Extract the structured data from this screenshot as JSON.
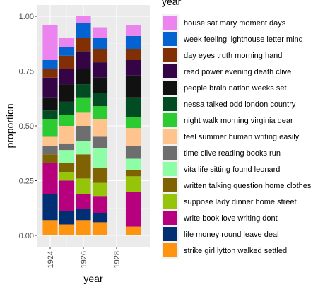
{
  "chart_data": {
    "type": "bar",
    "stacked": true,
    "normalized": true,
    "xlabel": "year",
    "ylabel": "proportion",
    "legend_title": "year",
    "legend_position": "right",
    "grid": true,
    "x_tick_values": [
      1924,
      1926,
      1928
    ],
    "x_tick_labels": [
      "1924",
      "1926",
      "1928"
    ],
    "y_tick_values": [
      0.0,
      0.25,
      0.5,
      0.75,
      1.0
    ],
    "y_tick_labels": [
      "0.00",
      "0.25",
      "0.50",
      "0.75",
      "1.00"
    ],
    "xlim": [
      1923.4,
      1929.7
    ],
    "ylim": [
      0,
      1
    ],
    "categories": [
      1924,
      1925,
      1926,
      1927,
      1929
    ],
    "series": [
      {
        "name": "strike girl lytton walked settled",
        "color": "#FF9411",
        "values": [
          0.07,
          0.05,
          0.07,
          0.06,
          0.04
        ]
      },
      {
        "name": "life money round leave deal",
        "color": "#002F73",
        "values": [
          0.12,
          0.06,
          0.05,
          0.04,
          0.0
        ]
      },
      {
        "name": "write book love writing dont",
        "color": "#B7007D",
        "values": [
          0.14,
          0.14,
          0.07,
          0.08,
          0.16
        ]
      },
      {
        "name": "suppose lady dinner home street",
        "color": "#95C409",
        "values": [
          0.0,
          0.04,
          0.07,
          0.06,
          0.07
        ]
      },
      {
        "name": "written talking question home clothes",
        "color": "#7F6302",
        "values": [
          0.04,
          0.04,
          0.11,
          0.07,
          0.03
        ]
      },
      {
        "name": "vita life sitting found leonard",
        "color": "#8EFEA6",
        "values": [
          0.0,
          0.06,
          0.06,
          0.09,
          0.05
        ]
      },
      {
        "name": "time clive reading books run",
        "color": "#6E6E6E",
        "values": [
          0.04,
          0.03,
          0.07,
          0.05,
          0.06
        ]
      },
      {
        "name": "feel summer human writing easily",
        "color": "#FFC38E",
        "values": [
          0.04,
          0.08,
          0.06,
          0.08,
          0.08
        ]
      },
      {
        "name": "night walk morning virginia dear",
        "color": "#2BCB31",
        "values": [
          0.08,
          0.05,
          0.07,
          0.06,
          0.05
        ]
      },
      {
        "name": "nessa talked odd london country",
        "color": "#024C23",
        "values": [
          0.04,
          0.06,
          0.06,
          0.06,
          0.09
        ]
      },
      {
        "name": "people brain nation weeks set",
        "color": "#111111",
        "values": [
          0.06,
          0.08,
          0.07,
          0.07,
          0.1
        ]
      },
      {
        "name": "read power evening death clive",
        "color": "#340446",
        "values": [
          0.09,
          0.07,
          0.08,
          0.07,
          0.07
        ]
      },
      {
        "name": "day eyes truth morning hand",
        "color": "#812F05",
        "values": [
          0.04,
          0.06,
          0.06,
          0.06,
          0.05
        ]
      },
      {
        "name": "week feeling lighthouse letter mind",
        "color": "#0563D1",
        "values": [
          0.04,
          0.04,
          0.07,
          0.05,
          0.06
        ]
      },
      {
        "name": "house sat mary moment days",
        "color": "#EC84EF",
        "values": [
          0.16,
          0.04,
          0.03,
          0.05,
          0.05
        ]
      }
    ]
  }
}
